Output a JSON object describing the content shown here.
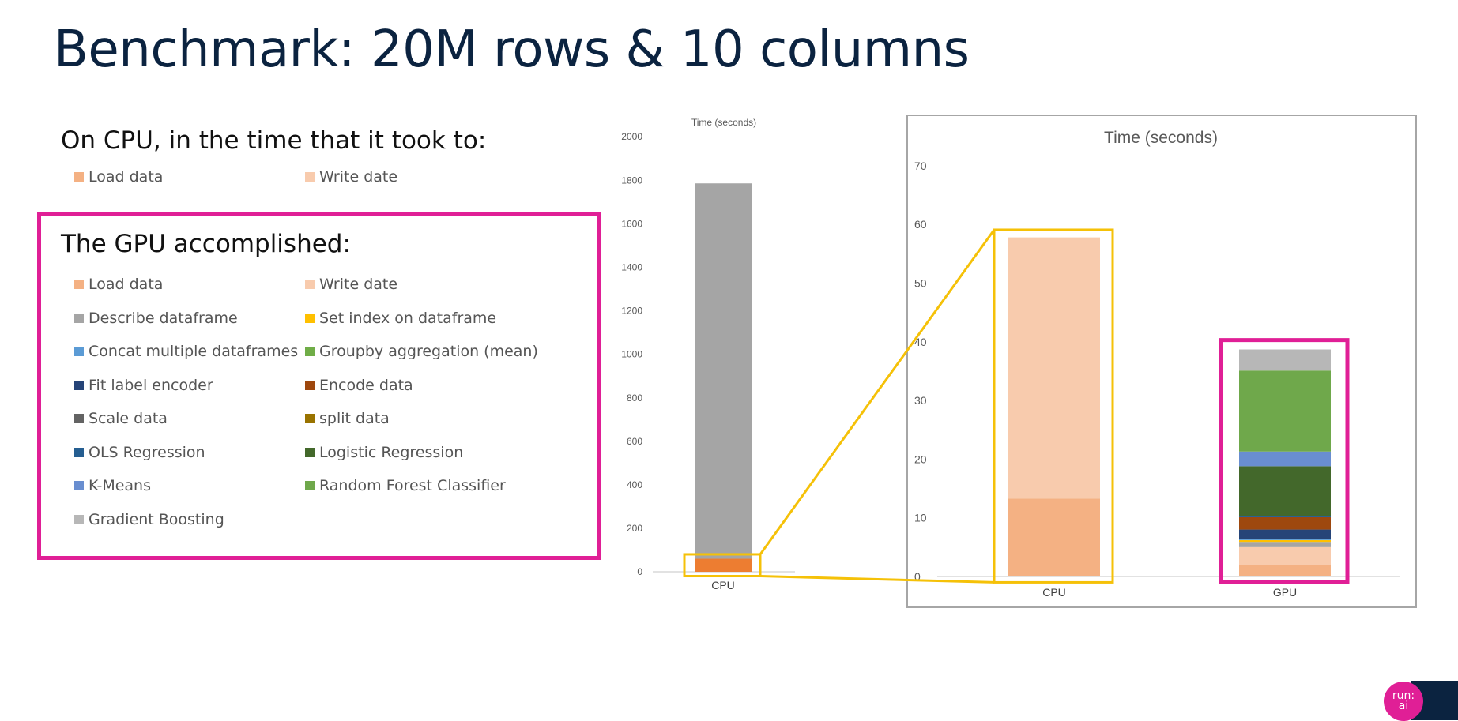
{
  "slide": {
    "title": "Benchmark: 20M rows & 10 columns",
    "cpu_heading": "On CPU, in the time that it took to:",
    "gpu_heading": "The GPU accomplished:",
    "logo_text": "run:ai"
  },
  "cpu_legend": [
    {
      "label": "Load data",
      "color": "#f4b183"
    },
    {
      "label": "Write date",
      "color": "#f8cbad"
    }
  ],
  "gpu_legend": [
    {
      "label": "Load data",
      "color": "#f4b183"
    },
    {
      "label": "Write date",
      "color": "#f8cbad"
    },
    {
      "label": "Describe dataframe",
      "color": "#a5a5a5"
    },
    {
      "label": "Set index on dataframe",
      "color": "#ffc000"
    },
    {
      "label": "Concat multiple dataframes",
      "color": "#5b9bd5"
    },
    {
      "label": "Groupby aggregation (mean)",
      "color": "#70ad47"
    },
    {
      "label": "Fit label encoder",
      "color": "#264478"
    },
    {
      "label": "Encode data",
      "color": "#9e480e"
    },
    {
      "label": "Scale data",
      "color": "#636363"
    },
    {
      "label": "split data",
      "color": "#997300"
    },
    {
      "label": "OLS Regression",
      "color": "#255e91"
    },
    {
      "label": "Logistic Regression",
      "color": "#43682b"
    },
    {
      "label": "K-Means",
      "color": "#698ed0"
    },
    {
      "label": "Random Forest Classifier",
      "color": "#6fa84b"
    },
    {
      "label": "Gradient Boosting",
      "color": "#b7b7b7"
    }
  ],
  "chart_data": [
    {
      "type": "bar",
      "stacked": true,
      "title": "Time (seconds)",
      "categories": [
        "CPU"
      ],
      "ylim": [
        0,
        2000
      ],
      "yticks": [
        0,
        200,
        400,
        600,
        800,
        1000,
        1200,
        1400,
        1600,
        1800,
        2000
      ],
      "grid": false,
      "segments": [
        {
          "category": "CPU",
          "value": 60,
          "color": "#ed7d31"
        },
        {
          "category": "CPU",
          "value": 1725,
          "color": "#a5a5a5"
        }
      ]
    },
    {
      "type": "bar",
      "stacked": true,
      "title": "Time (seconds)",
      "categories": [
        "CPU",
        "GPU"
      ],
      "ylim": [
        0,
        70
      ],
      "yticks": [
        0,
        10,
        20,
        30,
        40,
        50,
        60,
        70
      ],
      "grid": false,
      "segments": [
        {
          "category": "CPU",
          "value": 13.3,
          "color": "#f4b183"
        },
        {
          "category": "CPU",
          "value": 44.5,
          "color": "#f8cbad"
        },
        {
          "category": "GPU",
          "value": 2.0,
          "color": "#f4b183"
        },
        {
          "category": "GPU",
          "value": 3.0,
          "color": "#f8cbad"
        },
        {
          "category": "GPU",
          "value": 0.9,
          "color": "#a5a5a5"
        },
        {
          "category": "GPU",
          "value": 0.3,
          "color": "#ffc000"
        },
        {
          "category": "GPU",
          "value": 0.2,
          "color": "#5b9bd5"
        },
        {
          "category": "GPU",
          "value": 1.6,
          "color": "#264478"
        },
        {
          "category": "GPU",
          "value": 2.1,
          "color": "#9e480e"
        },
        {
          "category": "GPU",
          "value": 0.2,
          "color": "#255e91"
        },
        {
          "category": "GPU",
          "value": 8.5,
          "color": "#43682b"
        },
        {
          "category": "GPU",
          "value": 2.5,
          "color": "#698ed0"
        },
        {
          "category": "GPU",
          "value": 13.8,
          "color": "#6fa84b"
        },
        {
          "category": "GPU",
          "value": 3.6,
          "color": "#b7b7b7"
        }
      ]
    }
  ]
}
